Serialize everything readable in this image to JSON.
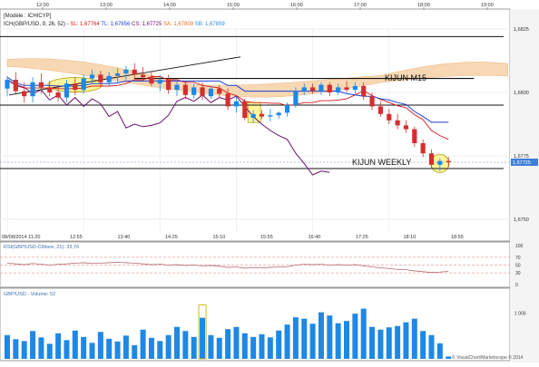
{
  "top_axis": {
    "labels": [
      "12:00",
      "13:00",
      "14:00",
      "15:00",
      "16:00",
      "17:00",
      "18:00",
      "19:00"
    ]
  },
  "header": {
    "module_line": "[Modèle : ICHICYP]",
    "legend_line_prefix": "ICH(GBP/USD, 9, 26, 52) -",
    "legend_items": [
      {
        "text": "SL: 1,67764",
        "color": "#d11919"
      },
      {
        "text": "TL: 1,67856",
        "color": "#1f3fd6"
      },
      {
        "text": "CS: 1,67725",
        "color": "#6a0f6e"
      },
      {
        "text": "SA: 1,67809",
        "color": "#e07020"
      },
      {
        "text": "SB: 1,67859",
        "color": "#2f8fd8"
      }
    ]
  },
  "annotations": {
    "kijun_m15": "KIJUN M15",
    "kijun_weekly": "KIJUN WEEKLY"
  },
  "time_axis": {
    "date_label": "08/08/2014 11:20",
    "labels": [
      "12:55",
      "13:40",
      "14:25",
      "15:10",
      "15:55",
      "16:40",
      "17:25",
      "18:10",
      "18:55"
    ]
  },
  "price_axis": {
    "labels": [
      "1,6825",
      "1,6800",
      "1,6775",
      "1,6750"
    ],
    "current_price_label": "1,67725"
  },
  "rsi_panel": {
    "title": "RSI(GBP/USD-Clôture, 21): 33,76",
    "levels": [
      "100",
      "70",
      "50",
      "30",
      "0"
    ]
  },
  "volume_panel": {
    "title": "GBP/USD - Volume: 52",
    "axis_label": "1 000"
  },
  "copyright": "© VisualChart/Marketscope © 2014",
  "colors": {
    "bull": "#1e88e5",
    "bear": "#d32f2f",
    "tenkan": "#d11919",
    "kijun": "#1f3fd6",
    "chikou": "#6a0f6e",
    "cloud": "#f6d2a6",
    "highlight": "#fff59a",
    "volume": "#1e88e5"
  },
  "chart_data": {
    "type": "candlestick",
    "instrument": "GBP/USD",
    "interval_minutes": 5,
    "bars": [
      {
        "o": 1.68015,
        "h": 1.68065,
        "l": 1.67985,
        "c": 1.6805
      },
      {
        "o": 1.6805,
        "h": 1.6808,
        "l": 1.67995,
        "c": 1.68005
      },
      {
        "o": 1.68005,
        "h": 1.6804,
        "l": 1.6796,
        "c": 1.67985
      },
      {
        "o": 1.67985,
        "h": 1.6806,
        "l": 1.6796,
        "c": 1.6804
      },
      {
        "o": 1.6804,
        "h": 1.68075,
        "l": 1.67995,
        "c": 1.6802
      },
      {
        "o": 1.6802,
        "h": 1.68045,
        "l": 1.67985,
        "c": 1.68
      },
      {
        "o": 1.68,
        "h": 1.6803,
        "l": 1.67965,
        "c": 1.6798
      },
      {
        "o": 1.6798,
        "h": 1.6805,
        "l": 1.6796,
        "c": 1.68035
      },
      {
        "o": 1.68035,
        "h": 1.6806,
        "l": 1.6799,
        "c": 1.6801
      },
      {
        "o": 1.6801,
        "h": 1.6807,
        "l": 1.67995,
        "c": 1.68055
      },
      {
        "o": 1.68055,
        "h": 1.6809,
        "l": 1.68035,
        "c": 1.6807
      },
      {
        "o": 1.6807,
        "h": 1.68085,
        "l": 1.68025,
        "c": 1.6804
      },
      {
        "o": 1.6804,
        "h": 1.6808,
        "l": 1.68025,
        "c": 1.68065
      },
      {
        "o": 1.68065,
        "h": 1.68095,
        "l": 1.6804,
        "c": 1.68075
      },
      {
        "o": 1.68075,
        "h": 1.68105,
        "l": 1.6805,
        "c": 1.6809
      },
      {
        "o": 1.6809,
        "h": 1.68115,
        "l": 1.68055,
        "c": 1.6807
      },
      {
        "o": 1.6807,
        "h": 1.681,
        "l": 1.68045,
        "c": 1.6806
      },
      {
        "o": 1.6806,
        "h": 1.68085,
        "l": 1.68025,
        "c": 1.68035
      },
      {
        "o": 1.68035,
        "h": 1.6807,
        "l": 1.68005,
        "c": 1.6805
      },
      {
        "o": 1.6805,
        "h": 1.6807,
        "l": 1.67995,
        "c": 1.6801
      },
      {
        "o": 1.6801,
        "h": 1.68045,
        "l": 1.67985,
        "c": 1.6803
      },
      {
        "o": 1.6803,
        "h": 1.68045,
        "l": 1.67975,
        "c": 1.6799
      },
      {
        "o": 1.6799,
        "h": 1.68035,
        "l": 1.67975,
        "c": 1.6802
      },
      {
        "o": 1.6802,
        "h": 1.6804,
        "l": 1.6797,
        "c": 1.67985
      },
      {
        "o": 1.67985,
        "h": 1.68025,
        "l": 1.67975,
        "c": 1.68015
      },
      {
        "o": 1.68015,
        "h": 1.6803,
        "l": 1.6798,
        "c": 1.67995
      },
      {
        "o": 1.67995,
        "h": 1.68015,
        "l": 1.6793,
        "c": 1.67945
      },
      {
        "o": 1.67945,
        "h": 1.67985,
        "l": 1.6792,
        "c": 1.67965
      },
      {
        "o": 1.67965,
        "h": 1.67975,
        "l": 1.6789,
        "c": 1.679
      },
      {
        "o": 1.679,
        "h": 1.6793,
        "l": 1.6788,
        "c": 1.67915
      },
      {
        "o": 1.67915,
        "h": 1.6793,
        "l": 1.67895,
        "c": 1.67905
      },
      {
        "o": 1.67905,
        "h": 1.67935,
        "l": 1.67885,
        "c": 1.6791
      },
      {
        "o": 1.6791,
        "h": 1.67925,
        "l": 1.67895,
        "c": 1.6792
      },
      {
        "o": 1.6792,
        "h": 1.6796,
        "l": 1.67905,
        "c": 1.6795
      },
      {
        "o": 1.6795,
        "h": 1.6802,
        "l": 1.6794,
        "c": 1.68005
      },
      {
        "o": 1.68005,
        "h": 1.68035,
        "l": 1.6799,
        "c": 1.6802
      },
      {
        "o": 1.6802,
        "h": 1.68035,
        "l": 1.67995,
        "c": 1.68005
      },
      {
        "o": 1.68005,
        "h": 1.6804,
        "l": 1.6799,
        "c": 1.6803
      },
      {
        "o": 1.6803,
        "h": 1.6804,
        "l": 1.67985,
        "c": 1.68
      },
      {
        "o": 1.68,
        "h": 1.68035,
        "l": 1.6799,
        "c": 1.6802
      },
      {
        "o": 1.6802,
        "h": 1.68045,
        "l": 1.68,
        "c": 1.6801
      },
      {
        "o": 1.6801,
        "h": 1.6804,
        "l": 1.67995,
        "c": 1.68025
      },
      {
        "o": 1.68025,
        "h": 1.6804,
        "l": 1.6797,
        "c": 1.67985
      },
      {
        "o": 1.67985,
        "h": 1.68,
        "l": 1.6793,
        "c": 1.67945
      },
      {
        "o": 1.67945,
        "h": 1.67965,
        "l": 1.67905,
        "c": 1.67915
      },
      {
        "o": 1.67915,
        "h": 1.67935,
        "l": 1.67875,
        "c": 1.6789
      },
      {
        "o": 1.6789,
        "h": 1.67915,
        "l": 1.67855,
        "c": 1.6787
      },
      {
        "o": 1.6787,
        "h": 1.6789,
        "l": 1.6784,
        "c": 1.67855
      },
      {
        "o": 1.67855,
        "h": 1.67865,
        "l": 1.67785,
        "c": 1.678
      },
      {
        "o": 1.678,
        "h": 1.67815,
        "l": 1.67745,
        "c": 1.6776
      },
      {
        "o": 1.6776,
        "h": 1.67775,
        "l": 1.677,
        "c": 1.67715
      },
      {
        "o": 1.67715,
        "h": 1.6774,
        "l": 1.6769,
        "c": 1.6773
      },
      {
        "o": 1.6773,
        "h": 1.67745,
        "l": 1.67705,
        "c": 1.67725
      }
    ],
    "kijun_m15_level": 1.68055,
    "kijun_weekly_level": 1.677,
    "horizontal_levels": [
      1.6822,
      1.6795
    ],
    "volume": [
      520,
      430,
      390,
      610,
      470,
      330,
      560,
      410,
      620,
      480,
      350,
      590,
      440,
      380,
      510,
      300,
      640,
      460,
      390,
      520,
      700,
      610,
      480,
      900,
      520,
      460,
      650,
      700,
      560,
      480,
      540,
      470,
      620,
      750,
      910,
      880,
      770,
      1020,
      950,
      780,
      830,
      990,
      1100,
      700,
      640,
      690,
      720,
      800,
      880,
      610,
      520,
      340,
      52
    ],
    "rsi": [
      55,
      53,
      51,
      54,
      52,
      50,
      52,
      53,
      55,
      56,
      54,
      55,
      56,
      57,
      56,
      55,
      53,
      51,
      52,
      50,
      51,
      49,
      50,
      48,
      49,
      47,
      44,
      45,
      42,
      43,
      43,
      44,
      45,
      46,
      50,
      52,
      51,
      52,
      50,
      51,
      50,
      51,
      48,
      45,
      43,
      41,
      39,
      38,
      35,
      33,
      31,
      32,
      33.76
    ],
    "rsi_range": [
      0,
      100
    ],
    "rsi_levels": [
      70,
      50,
      30
    ],
    "current_price": 1.67725
  }
}
